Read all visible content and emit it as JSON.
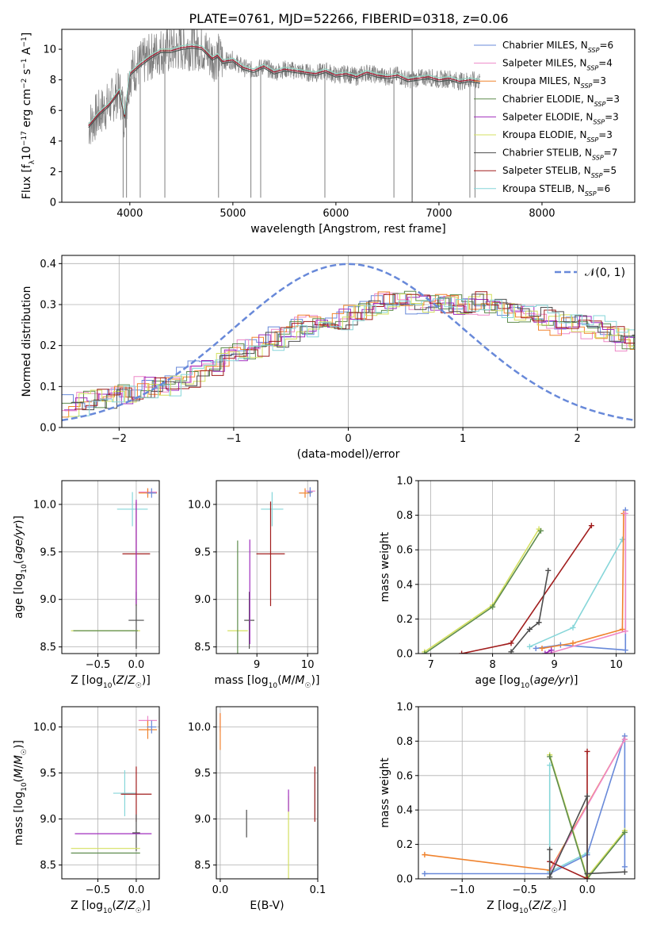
{
  "title": "PLATE=0761, MJD=52266, FIBERID=0318, z=0.06",
  "colors": [
    "#6889d9",
    "#ee88c8",
    "#f0832e",
    "#5e8c4d",
    "#a02dbd",
    "#d4e060",
    "#4d4d4d",
    "#a11d1d",
    "#86d6d9"
  ],
  "models": [
    {
      "name": "Chabrier MILES",
      "n": "6"
    },
    {
      "name": "Salpeter MILES",
      "n": "4"
    },
    {
      "name": "Kroupa MILES",
      "n": "3"
    },
    {
      "name": "Chabrier ELODIE",
      "n": "3"
    },
    {
      "name": "Salpeter ELODIE",
      "n": "3"
    },
    {
      "name": "Kroupa ELODIE",
      "n": "3"
    },
    {
      "name": "Chabrier STELIB",
      "n": "7"
    },
    {
      "name": "Salpeter STELIB",
      "n": "5"
    },
    {
      "name": "Kroupa STELIB",
      "n": "6"
    }
  ],
  "chart_data": [
    {
      "id": "spectrum",
      "type": "line",
      "xlabel": "wavelength [Angstrom, rest frame]",
      "ylabel": "Flux [f_λ10^-17 erg cm^-2 s^-1 A^-1]",
      "xlim": [
        3340,
        8900
      ],
      "ylim": [
        0,
        11.3
      ],
      "xticks": [
        4000,
        5000,
        6000,
        7000,
        8000
      ],
      "yticks": [
        0,
        2,
        4,
        6,
        8,
        10
      ],
      "data_color": "#808080",
      "continuum_x": [
        3600,
        3700,
        3800,
        3900,
        3950,
        4000,
        4100,
        4200,
        4300,
        4400,
        4500,
        4600,
        4700,
        4800,
        4850,
        4900,
        5000,
        5100,
        5200,
        5300,
        5400,
        5500,
        5600,
        5700,
        5800,
        5900,
        6000,
        6100,
        6200,
        6300,
        6400,
        6500,
        6600,
        6700,
        6800,
        6900,
        7000,
        7100,
        7200,
        7300,
        7400
      ],
      "continuum_y": [
        5.0,
        5.8,
        6.4,
        7.3,
        5.6,
        8.4,
        9.0,
        9.5,
        9.9,
        9.9,
        10.1,
        10.2,
        10.1,
        9.4,
        9.6,
        9.2,
        9.3,
        8.8,
        8.6,
        8.9,
        8.5,
        8.7,
        8.6,
        8.5,
        8.4,
        8.6,
        8.3,
        8.4,
        8.2,
        8.5,
        8.3,
        8.2,
        8.3,
        8.0,
        8.1,
        8.2,
        8.0,
        8.1,
        7.9,
        8.0,
        7.9
      ]
    },
    {
      "id": "residuals",
      "type": "step",
      "xlabel": "(data-model)/error",
      "ylabel": "Normed distribution",
      "xlim": [
        -2.5,
        2.5
      ],
      "ylim": [
        0,
        0.42
      ],
      "xticks": [
        -2,
        -1,
        0,
        1,
        2
      ],
      "yticks": [
        0.0,
        0.1,
        0.2,
        0.3,
        0.4
      ],
      "legend": "𝒩(0, 1)",
      "gauss_sigma": 1.0,
      "gauss_peak": 0.399,
      "bin_width": 0.1,
      "base_hist": [
        0.05,
        0.06,
        0.07,
        0.07,
        0.08,
        0.08,
        0.09,
        0.1,
        0.1,
        0.11,
        0.12,
        0.13,
        0.14,
        0.16,
        0.17,
        0.18,
        0.19,
        0.21,
        0.22,
        0.23,
        0.24,
        0.25,
        0.25,
        0.26,
        0.27,
        0.28,
        0.29,
        0.3,
        0.31,
        0.31,
        0.31,
        0.3,
        0.3,
        0.3,
        0.3,
        0.31,
        0.3,
        0.29,
        0.29,
        0.28,
        0.28,
        0.27,
        0.26,
        0.25,
        0.25,
        0.25,
        0.24,
        0.23,
        0.22,
        0.21,
        0.21,
        0.2,
        0.19,
        0.19,
        0.18,
        0.16,
        0.15,
        0.14,
        0.12,
        0.12,
        0.11,
        0.1,
        0.1,
        0.09,
        0.09,
        0.08,
        0.08,
        0.07,
        0.07,
        0.07,
        0.06,
        0.06
      ]
    },
    {
      "id": "age_Z",
      "type": "errorbar",
      "xlabel": "Z [log10(Z/Z☉)]",
      "ylabel": "age [log10(age/yr)]",
      "xlim": [
        -0.97,
        0.3
      ],
      "ylim": [
        8.43,
        10.25
      ],
      "xticks": [
        -0.5,
        0.0
      ],
      "yticks": [
        8.5,
        9.0,
        9.5,
        10.0
      ],
      "points": [
        {
          "c": 8,
          "x": -0.05,
          "y": 9.95,
          "xe": 0.2,
          "ye": 0.18
        },
        {
          "c": 1,
          "x": 0.15,
          "y": 10.13,
          "xe": 0.12,
          "ye": 0.04
        },
        {
          "c": 2,
          "x": 0.15,
          "y": 10.12,
          "xe": 0.12,
          "ye": 0.05
        },
        {
          "c": 0,
          "x": 0.2,
          "y": 10.12,
          "xe": 0.06,
          "ye": 0.05
        },
        {
          "c": 7,
          "x": 0.0,
          "y": 9.48,
          "xe": 0.18,
          "ye": 0.55
        },
        {
          "c": 6,
          "x": 0.0,
          "y": 8.78,
          "xe": 0.1,
          "ye": 0.3
        },
        {
          "c": 5,
          "x": -0.4,
          "y": 8.67,
          "xe": 0.45,
          "ye": 0.0
        },
        {
          "c": 3,
          "x": -0.4,
          "y": 8.67,
          "xe": 0.42,
          "ye": 0.0
        },
        {
          "c": 4,
          "x": 0.0,
          "y": 9.5,
          "xe": 0.0,
          "ye": 0.55
        }
      ]
    },
    {
      "id": "age_mass",
      "type": "errorbar",
      "xlabel": "mass [log10(M/M☉)]",
      "ylabel": "",
      "xlim": [
        8.2,
        10.2
      ],
      "ylim": [
        8.43,
        10.25
      ],
      "xticks": [
        9,
        10
      ],
      "yticks": [
        8.5,
        9.0,
        9.5,
        10.0
      ],
      "points": [
        {
          "c": 8,
          "x": 9.3,
          "y": 9.95,
          "xe": 0.22,
          "ye": 0.18
        },
        {
          "c": 1,
          "x": 10.05,
          "y": 10.14,
          "xe": 0.1,
          "ye": 0.04
        },
        {
          "c": 2,
          "x": 9.95,
          "y": 10.12,
          "xe": 0.12,
          "ye": 0.05
        },
        {
          "c": 0,
          "x": 10.05,
          "y": 10.13,
          "xe": 0.05,
          "ye": 0.05
        },
        {
          "c": 7,
          "x": 9.27,
          "y": 9.48,
          "xe": 0.28,
          "ye": 0.55
        },
        {
          "c": 6,
          "x": 8.85,
          "y": 8.78,
          "xe": 0.1,
          "ye": 0.3
        },
        {
          "c": 5,
          "x": 8.62,
          "y": 8.67,
          "xe": 0.2,
          "ye": 0.0
        },
        {
          "c": 3,
          "x": 8.62,
          "y": 8.67,
          "xe": 0.0,
          "ye": 0.95
        },
        {
          "c": 4,
          "x": 8.86,
          "y": 9.08,
          "xe": 0.0,
          "ye": 0.55
        }
      ]
    },
    {
      "id": "weight_age",
      "type": "line",
      "xlabel": "age [log10(age/yr)]",
      "ylabel": "mass weight",
      "xlim": [
        6.8,
        10.3
      ],
      "ylim": [
        0,
        1
      ],
      "xticks": [
        7,
        8,
        9,
        10
      ],
      "yticks": [
        0.0,
        0.2,
        0.4,
        0.6,
        0.8,
        1.0
      ],
      "series": [
        {
          "c": 5,
          "x": [
            6.9,
            8.0,
            8.75
          ],
          "y": [
            0.01,
            0.28,
            0.72
          ]
        },
        {
          "c": 3,
          "x": [
            6.9,
            8.0,
            8.78
          ],
          "y": [
            0.0,
            0.27,
            0.71
          ]
        },
        {
          "c": 7,
          "x": [
            7.5,
            8.3,
            9.6
          ],
          "y": [
            0.0,
            0.06,
            0.74
          ]
        },
        {
          "c": 6,
          "x": [
            8.3,
            8.6,
            8.75,
            8.9
          ],
          "y": [
            0.01,
            0.14,
            0.18,
            0.48
          ]
        },
        {
          "c": 8,
          "x": [
            8.6,
            9.3,
            10.1
          ],
          "y": [
            0.04,
            0.15,
            0.66
          ]
        },
        {
          "c": 0,
          "x": [
            8.7,
            9.1,
            10.15,
            10.15
          ],
          "y": [
            0.03,
            0.05,
            0.02,
            0.83
          ]
        },
        {
          "c": 2,
          "x": [
            8.8,
            9.3,
            10.1,
            10.12
          ],
          "y": [
            0.03,
            0.06,
            0.14,
            0.81
          ]
        },
        {
          "c": 1,
          "x": [
            8.9,
            10.15,
            10.15
          ],
          "y": [
            0.0,
            0.13,
            0.81
          ]
        },
        {
          "c": 4,
          "x": [
            8.85,
            8.95
          ],
          "y": [
            0.0,
            0.02
          ]
        }
      ]
    },
    {
      "id": "mass_Z",
      "type": "errorbar",
      "xlabel": "Z [log10(Z/Z☉)]",
      "ylabel": "mass [log10(M/M☉)]",
      "xlim": [
        -0.97,
        0.3
      ],
      "ylim": [
        8.35,
        10.22
      ],
      "xticks": [
        -0.5,
        0.0
      ],
      "yticks": [
        8.5,
        9.0,
        9.5,
        10.0
      ],
      "points": [
        {
          "c": 8,
          "x": -0.15,
          "y": 9.28,
          "xe": 0.15,
          "ye": 0.25
        },
        {
          "c": 1,
          "x": 0.15,
          "y": 10.07,
          "xe": 0.12,
          "ye": 0.05
        },
        {
          "c": 2,
          "x": 0.15,
          "y": 9.97,
          "xe": 0.12,
          "ye": 0.1
        },
        {
          "c": 0,
          "x": 0.2,
          "y": 10.0,
          "xe": 0.06,
          "ye": 0.07
        },
        {
          "c": 7,
          "x": 0.0,
          "y": 9.27,
          "xe": 0.2,
          "ye": 0.3
        },
        {
          "c": 6,
          "x": 0.0,
          "y": 8.85,
          "xe": 0.05,
          "ye": 0.2
        },
        {
          "c": 4,
          "x": -0.3,
          "y": 8.84,
          "xe": 0.5,
          "ye": 0.0
        },
        {
          "c": 5,
          "x": -0.4,
          "y": 8.68,
          "xe": 0.45,
          "ye": 0.0
        },
        {
          "c": 3,
          "x": -0.4,
          "y": 8.63,
          "xe": 0.45,
          "ye": 0.0
        }
      ]
    },
    {
      "id": "mass_ebv",
      "type": "errorbar",
      "xlabel": "E(B-V)",
      "ylabel": "",
      "xlim": [
        -0.004,
        0.1
      ],
      "ylim": [
        8.35,
        10.22
      ],
      "xticks": [
        0.0,
        0.1
      ],
      "yticks": [
        8.5,
        9.0,
        9.5,
        10.0
      ],
      "points": [
        {
          "c": 1,
          "x": 0.0,
          "y": 10.05,
          "xe": 0.0,
          "ye": 0.1
        },
        {
          "c": 2,
          "x": 0.0,
          "y": 9.95,
          "xe": 0.0,
          "ye": 0.2
        },
        {
          "c": 6,
          "x": 0.027,
          "y": 8.95,
          "xe": 0.0,
          "ye": 0.15
        },
        {
          "c": 5,
          "x": 0.07,
          "y": 8.8,
          "xe": 0.0,
          "ye": 0.45
        },
        {
          "c": 4,
          "x": 0.07,
          "y": 9.2,
          "xe": 0.0,
          "ye": 0.12
        },
        {
          "c": 8,
          "x": 0.097,
          "y": 9.25,
          "xe": 0.0,
          "ye": 0.25
        },
        {
          "c": 7,
          "x": 0.097,
          "y": 9.27,
          "xe": 0.0,
          "ye": 0.3
        }
      ]
    },
    {
      "id": "weight_Z",
      "type": "line",
      "xlabel": "Z [log10(Z/Z☉)]",
      "ylabel": "mass weight",
      "xlim": [
        -1.35,
        0.38
      ],
      "ylim": [
        0,
        1
      ],
      "xticks": [
        -1.0,
        -0.5,
        0.0
      ],
      "yticks": [
        0.0,
        0.2,
        0.4,
        0.6,
        0.8,
        1.0
      ],
      "series": [
        {
          "c": 0,
          "x": [
            -1.3,
            -0.3,
            0.0,
            0.3,
            0.3
          ],
          "y": [
            0.03,
            0.03,
            0.14,
            0.83,
            0.07
          ]
        },
        {
          "c": 2,
          "x": [
            -1.3,
            -0.3,
            0.3
          ],
          "y": [
            0.14,
            0.05,
            0.81
          ]
        },
        {
          "c": 1,
          "x": [
            -0.3,
            0.3
          ],
          "y": [
            0.04,
            0.81
          ]
        },
        {
          "c": 8,
          "x": [
            -0.3,
            -0.3,
            0.0
          ],
          "y": [
            0.66,
            0.04,
            0.15
          ]
        },
        {
          "c": 5,
          "x": [
            -0.3,
            0.0,
            0.3
          ],
          "y": [
            0.72,
            0.01,
            0.28
          ]
        },
        {
          "c": 3,
          "x": [
            -0.3,
            0.0,
            0.3
          ],
          "y": [
            0.71,
            0.0,
            0.27
          ]
        },
        {
          "c": 7,
          "x": [
            -0.3,
            0.0,
            0.0
          ],
          "y": [
            0.1,
            0.0,
            0.74
          ]
        },
        {
          "c": 6,
          "x": [
            -0.3,
            -0.3,
            0.0,
            0.0,
            0.3
          ],
          "y": [
            0.17,
            0.01,
            0.48,
            0.03,
            0.04
          ]
        }
      ]
    }
  ]
}
